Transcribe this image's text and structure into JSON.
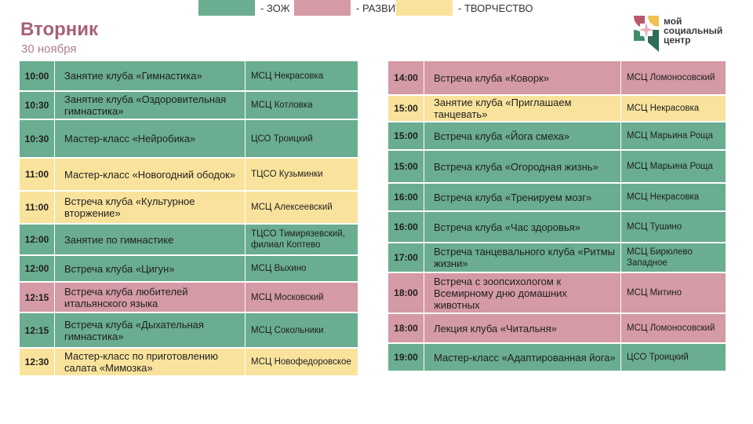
{
  "header": {
    "day": "Вторник",
    "date": "30 ноября"
  },
  "logo": {
    "line1": "мой",
    "line2": "социальный",
    "line3": "центр"
  },
  "colors": {
    "zozh": "#6aad90",
    "razv": "#d49aa5",
    "tvor": "#f9e39c"
  },
  "left_rows": [
    {
      "time": "10:00",
      "event": "Занятие клуба «Гимнастика»",
      "place": "МСЦ Некрасовка",
      "cat": "zozh"
    },
    {
      "time": "10:30",
      "event": "Занятие клуба «Оздоровительная гимнастика»",
      "place": "МСЦ Котловка",
      "cat": "zozh"
    },
    {
      "time": "10:30",
      "event": "Мастер-класс «Нейробика»",
      "place": "ЦСО Троицкий",
      "cat": "zozh"
    },
    {
      "time": "11:00",
      "event": "Мастер-класс «Новогодний ободок»",
      "place": "ТЦСО Кузьминки",
      "cat": "tvor"
    },
    {
      "time": "11:00",
      "event": "Встреча клуба «Культурное вторжение»",
      "place": "МСЦ Алексеевский",
      "cat": "tvor"
    },
    {
      "time": "12:00",
      "event": "Занятие по гимнастике",
      "place": "ТЦСО Тимирязевский, филиал Коптево",
      "cat": "zozh"
    },
    {
      "time": "12:00",
      "event": "Встреча клуба «Цигун»",
      "place": "МСЦ Выхино",
      "cat": "zozh"
    },
    {
      "time": "12:15",
      "event": "Встреча клуба любителей итальянского языка",
      "place": "МСЦ Московский",
      "cat": "razv"
    },
    {
      "time": "12:15",
      "event": "Встреча клуба «Дыхательная гимнастика»",
      "place": "МСЦ Сокольники",
      "cat": "zozh"
    },
    {
      "time": "12:30",
      "event": "Мастер-класс по приготовлению салата «Мимозка»",
      "place": "МСЦ Новофедоровское",
      "cat": "tvor"
    }
  ],
  "right_rows": [
    {
      "time": "14:00",
      "event": "Встреча клуба «Коворк»",
      "place": "МСЦ Ломоносовский",
      "cat": "razv"
    },
    {
      "time": "15:00",
      "event": "Занятие клуба «Приглашаем танцевать»",
      "place": "МСЦ Некрасовка",
      "cat": "tvor"
    },
    {
      "time": "15:00",
      "event": "Встреча клуба «Йога смеха»",
      "place": "МСЦ Марьина Роща",
      "cat": "zozh"
    },
    {
      "time": "15:00",
      "event": "Встреча клуба «Огородная жизнь»",
      "place": "МСЦ Марьина Роща",
      "cat": "zozh"
    },
    {
      "time": "16:00",
      "event": "Встреча клуба «Тренируем мозг»",
      "place": "МСЦ Некрасовка",
      "cat": "zozh"
    },
    {
      "time": "16:00",
      "event": "Встреча клуба «Час здоровья»",
      "place": "МСЦ Тушино",
      "cat": "zozh"
    },
    {
      "time": "17:00",
      "event": "Встреча танцевального клуба «Ритмы жизни»",
      "place": "МСЦ Бирюлево Западное",
      "cat": "zozh"
    },
    {
      "time": "18:00",
      "event": "Встреча с зоопсихологом к Всемирному дню домашних животных",
      "place": "МСЦ Митино",
      "cat": "razv"
    },
    {
      "time": "18:00",
      "event": "Лекция клуба «Читальня»",
      "place": "МСЦ Ломоносовский",
      "cat": "razv"
    },
    {
      "time": "19:00",
      "event": "Мастер-класс «Адаптированная йога»",
      "place": "ЦСО Троицкий",
      "cat": "zozh"
    }
  ],
  "legend": [
    {
      "label": "- ЗОЖ",
      "cat": "zozh"
    },
    {
      "label": "- РАЗВИТИЕ",
      "cat": "razv"
    },
    {
      "label": "- ТВОРЧЕСТВО",
      "cat": "tvor"
    }
  ]
}
